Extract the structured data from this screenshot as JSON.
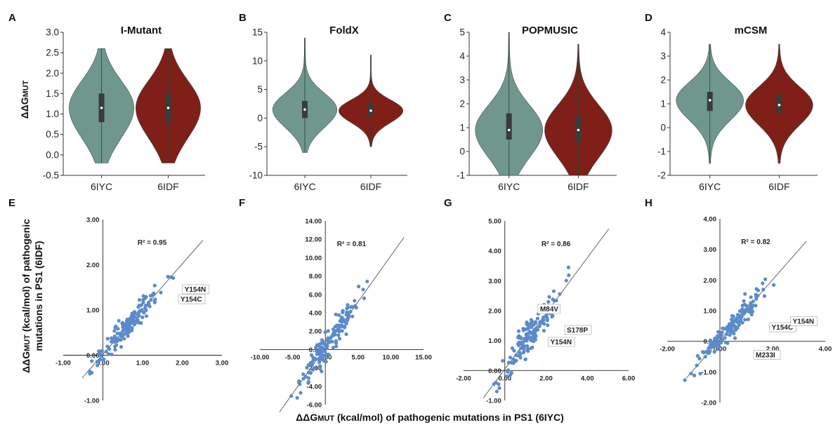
{
  "violin_ylabel": "ΔΔG",
  "violin_ylabel_sub": "MUT",
  "scatter_ylabel_prefix": "ΔΔG",
  "scatter_ylabel_sub": "MUT",
  "scatter_ylabel_rest": " (kcal/mol) of pathogenic",
  "scatter_ylabel_line2": "mutations in PS1 (6IDF)",
  "scatter_xlabel_prefix": "ΔΔG",
  "scatter_xlabel_sub": "MUT",
  "scatter_xlabel_rest": " (kcal/mol) of pathogenic mutations in PS1 (6IYC)",
  "colors": {
    "teal": "#6f978e",
    "darkred": "#7f1f17",
    "dot": "#5b8acb",
    "line": "#555555"
  },
  "chart_data": [
    {
      "panel": "A",
      "type": "violin",
      "title": "I-Mutant",
      "categories": [
        "6IYC",
        "6IDF"
      ],
      "ylim": [
        -0.5,
        3.0
      ],
      "yticks": [
        "-0.5",
        "0.0",
        "0.5",
        "1.0",
        "1.5",
        "2.0",
        "2.5",
        "3.0"
      ],
      "series": [
        {
          "category": "6IYC",
          "min": -0.2,
          "q1": 0.8,
          "median": 1.15,
          "q3": 1.5,
          "max": 2.6
        },
        {
          "category": "6IDF",
          "min": -0.2,
          "q1": 0.8,
          "median": 1.15,
          "q3": 1.5,
          "max": 2.6
        }
      ]
    },
    {
      "panel": "B",
      "type": "violin",
      "title": "FoldX",
      "categories": [
        "6IYC",
        "6IDF"
      ],
      "ylim": [
        -10,
        15
      ],
      "yticks": [
        "-10",
        "-5",
        "0",
        "5",
        "10",
        "15"
      ],
      "series": [
        {
          "category": "6IYC",
          "min": -6,
          "q1": 0,
          "median": 1.5,
          "q3": 3,
          "max": 14
        },
        {
          "category": "6IDF",
          "min": -5,
          "q1": 0.5,
          "median": 1.3,
          "q3": 2.5,
          "max": 11
        }
      ]
    },
    {
      "panel": "C",
      "type": "violin",
      "title": "POPMUSIC",
      "categories": [
        "6IYC",
        "6IDF"
      ],
      "ylim": [
        -1,
        5
      ],
      "yticks": [
        "-1",
        "0",
        "1",
        "2",
        "3",
        "4",
        "5"
      ],
      "series": [
        {
          "category": "6IYC",
          "min": -1,
          "q1": 0.5,
          "median": 0.9,
          "q3": 1.6,
          "max": 5
        },
        {
          "category": "6IDF",
          "min": -1,
          "q1": 0.4,
          "median": 0.9,
          "q3": 1.5,
          "max": 4.5
        }
      ]
    },
    {
      "panel": "D",
      "type": "violin",
      "title": "mCSM",
      "categories": [
        "6IYC",
        "6IDF"
      ],
      "ylim": [
        -2,
        4
      ],
      "yticks": [
        "-2",
        "-1",
        "0",
        "1",
        "2",
        "3",
        "4"
      ],
      "series": [
        {
          "category": "6IYC",
          "min": -1.5,
          "q1": 0.7,
          "median": 1.15,
          "q3": 1.5,
          "max": 3.5
        },
        {
          "category": "6IDF",
          "min": -1.5,
          "q1": 0.6,
          "median": 0.95,
          "q3": 1.4,
          "max": 3.5
        }
      ]
    },
    {
      "panel": "E",
      "type": "scatter",
      "r2": "R² = 0.95",
      "xlim": [
        -1,
        3
      ],
      "ylim": [
        -1,
        3
      ],
      "xticks": [
        "-1.00",
        "0.00",
        "1.00",
        "2.00",
        "3.00"
      ],
      "yticks": [
        "-1.00",
        "0.00",
        "1.00",
        "2.00",
        "3.00"
      ],
      "fit": {
        "slope": 1.0,
        "intercept": 0.02
      },
      "annotations": [
        {
          "label": "Y154N",
          "x": 1.95,
          "y": 1.42
        },
        {
          "label": "Y154C",
          "x": 1.85,
          "y": 1.2
        }
      ]
    },
    {
      "panel": "F",
      "type": "scatter",
      "r2": "R² = 0.81",
      "xlim": [
        -10,
        15
      ],
      "ylim": [
        -6,
        14
      ],
      "xticks": [
        "-10.00",
        "-5.00",
        "0.00",
        "5.00",
        "10.00",
        "15.00"
      ],
      "yticks": [
        "-6.00",
        "-4.00",
        "-2.00",
        "0.00",
        "2.00",
        "4.00",
        "6.00",
        "8.00",
        "10.00",
        "12.00",
        "14.00"
      ],
      "fit": {
        "slope": 1.0,
        "intercept": 0.2
      },
      "annotations": []
    },
    {
      "panel": "G",
      "type": "scatter",
      "r2": "R² = 0.86",
      "xlim": [
        -2,
        6
      ],
      "ylim": [
        -1,
        5
      ],
      "xticks": [
        "-2.00",
        "0.00",
        "2.00",
        "4.00",
        "6.00"
      ],
      "yticks": [
        "-1.00",
        "0.00",
        "1.00",
        "2.00",
        "3.00",
        "4.00",
        "5.00"
      ],
      "fit": {
        "slope": 0.93,
        "intercept": 0.05
      },
      "annotations": [
        {
          "label": "M84V",
          "x": 1.5,
          "y": 2.0
        },
        {
          "label": "S178P",
          "x": 2.8,
          "y": 1.3
        },
        {
          "label": "Y154N",
          "x": 2.0,
          "y": 0.9
        }
      ]
    },
    {
      "panel": "H",
      "type": "scatter",
      "r2": "R² = 0.82",
      "xlim": [
        -2,
        4
      ],
      "ylim": [
        -2,
        4
      ],
      "xticks": [
        "-2.00",
        "0.00",
        "2.00",
        "4.00"
      ],
      "yticks": [
        "-2.00",
        "-1.00",
        "0.00",
        "1.00",
        "2.00",
        "3.00",
        "4.00"
      ],
      "fit": {
        "slope": 0.98,
        "intercept": 0.05
      },
      "annotations": [
        {
          "label": "Y154C",
          "x": 1.8,
          "y": 0.4
        },
        {
          "label": "Y154N",
          "x": 2.6,
          "y": 0.6
        },
        {
          "label": "M233I",
          "x": 1.2,
          "y": -0.5
        }
      ]
    }
  ]
}
